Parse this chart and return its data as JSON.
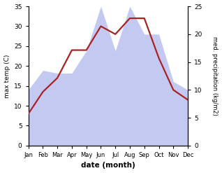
{
  "months": [
    "Jan",
    "Feb",
    "Mar",
    "Apr",
    "May",
    "Jun",
    "Jul",
    "Aug",
    "Sep",
    "Oct",
    "Nov",
    "Dec"
  ],
  "temp": [
    8,
    13.5,
    17,
    24,
    24,
    30,
    28,
    32,
    32,
    22,
    14,
    11.5
  ],
  "precip": [
    10,
    13.5,
    13,
    13,
    17,
    25,
    17,
    25,
    20,
    20,
    11.5,
    10
  ],
  "temp_ylim": [
    0,
    35
  ],
  "precip_ylim": [
    0,
    25
  ],
  "temp_yticks": [
    0,
    5,
    10,
    15,
    20,
    25,
    30,
    35
  ],
  "precip_yticks": [
    0,
    5,
    10,
    15,
    20,
    25
  ],
  "fill_color": "#b0b8ee",
  "fill_alpha": 0.75,
  "line_color": "#aa2222",
  "line_width": 1.6,
  "xlabel": "date (month)",
  "ylabel_left": "max temp (C)",
  "ylabel_right": "med. precipitation (kg/m2)",
  "bg_color": "#ffffff"
}
